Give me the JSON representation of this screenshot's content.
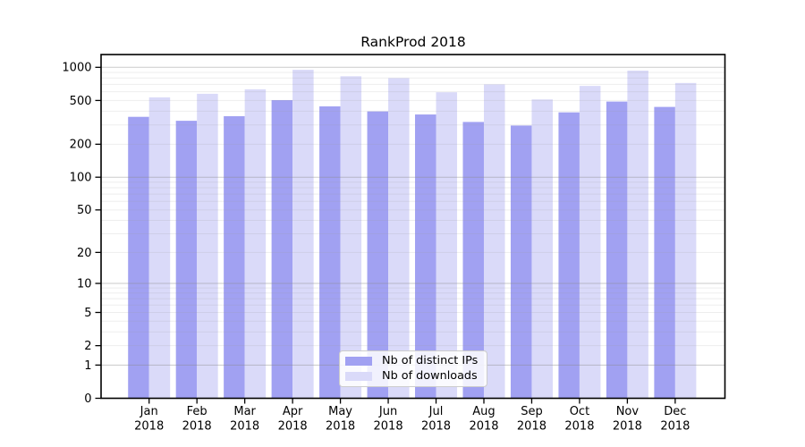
{
  "chart_data": {
    "type": "bar",
    "title": "RankProd 2018",
    "categories": [
      "Jan 2018",
      "Feb 2018",
      "Mar 2018",
      "Apr 2018",
      "May 2018",
      "Jun 2018",
      "Jul 2018",
      "Aug 2018",
      "Sep 2018",
      "Oct 2018",
      "Nov 2018",
      "Dec 2018"
    ],
    "series": [
      {
        "name": "Nb of distinct IPs",
        "color": "#a1a1f2",
        "values": [
          355,
          327,
          360,
          504,
          442,
          398,
          373,
          319,
          296,
          390,
          489,
          437
        ]
      },
      {
        "name": "Nb of downloads",
        "color": "#dadaf9",
        "values": [
          534,
          575,
          632,
          950,
          829,
          798,
          594,
          700,
          511,
          678,
          933,
          721
        ]
      }
    ],
    "y_ticks": [
      0,
      1,
      2,
      5,
      10,
      20,
      50,
      100,
      200,
      500,
      1000
    ],
    "y_scale": "log10(value+1)",
    "ylim": [
      0,
      1300
    ],
    "xlabel": "",
    "ylabel": "",
    "grid": "horizontal",
    "legend_position": "lower-center-inside"
  }
}
